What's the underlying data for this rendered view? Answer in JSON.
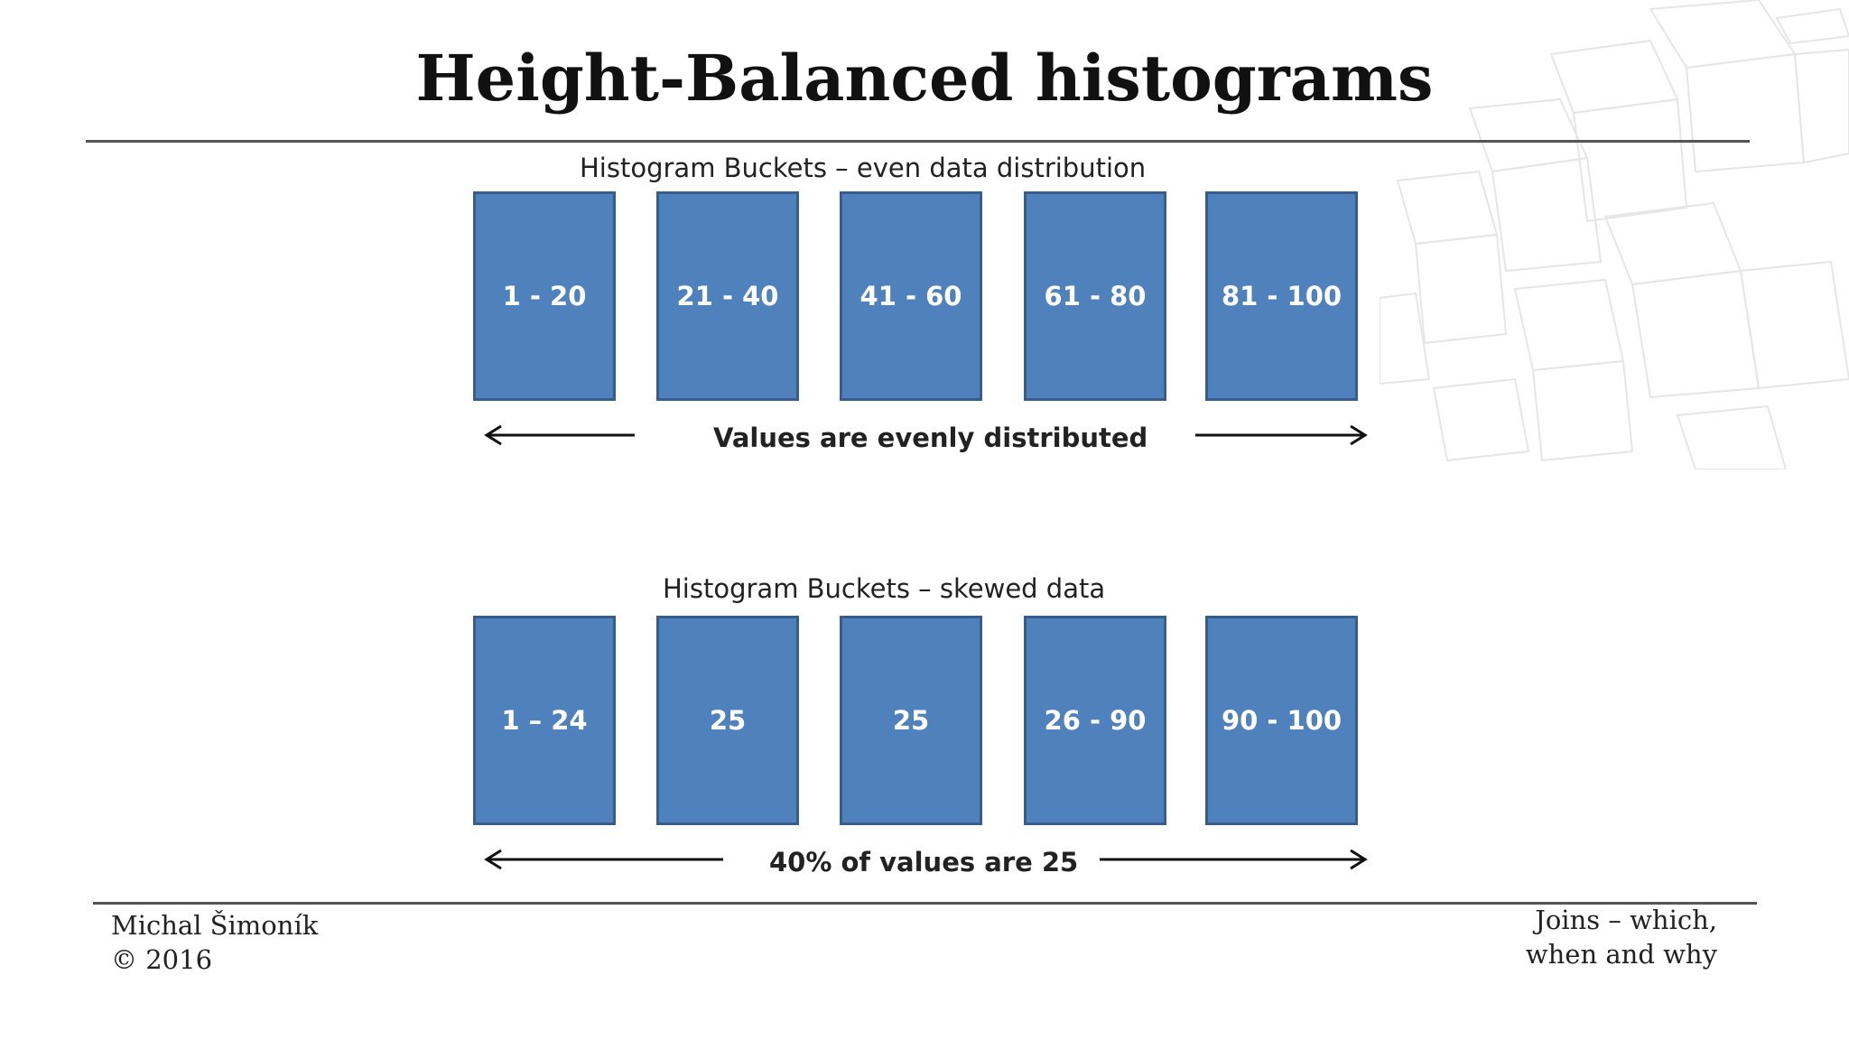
{
  "slide": {
    "title": "Height-Balanced histograms"
  },
  "even_section": {
    "heading": "Histogram Buckets – even data distribution",
    "buckets": [
      "1 - 20",
      "21 - 40",
      "41 - 60",
      "61 - 80",
      "81 - 100"
    ],
    "caption": "Values are evenly distributed"
  },
  "skewed_section": {
    "heading": "Histogram Buckets – skewed data",
    "buckets": [
      "1 – 24",
      "25",
      "25",
      "26 - 90",
      "90 - 100"
    ],
    "caption": "40% of values are 25"
  },
  "footer": {
    "author": "Michal Šimoník",
    "copyright": "© 2016",
    "topic_line1": "Joins – which,",
    "topic_line2": "when and why"
  },
  "colors": {
    "bucket_fill": "#4f81bd",
    "bucket_border": "#385d8a",
    "rule": "#555555"
  }
}
